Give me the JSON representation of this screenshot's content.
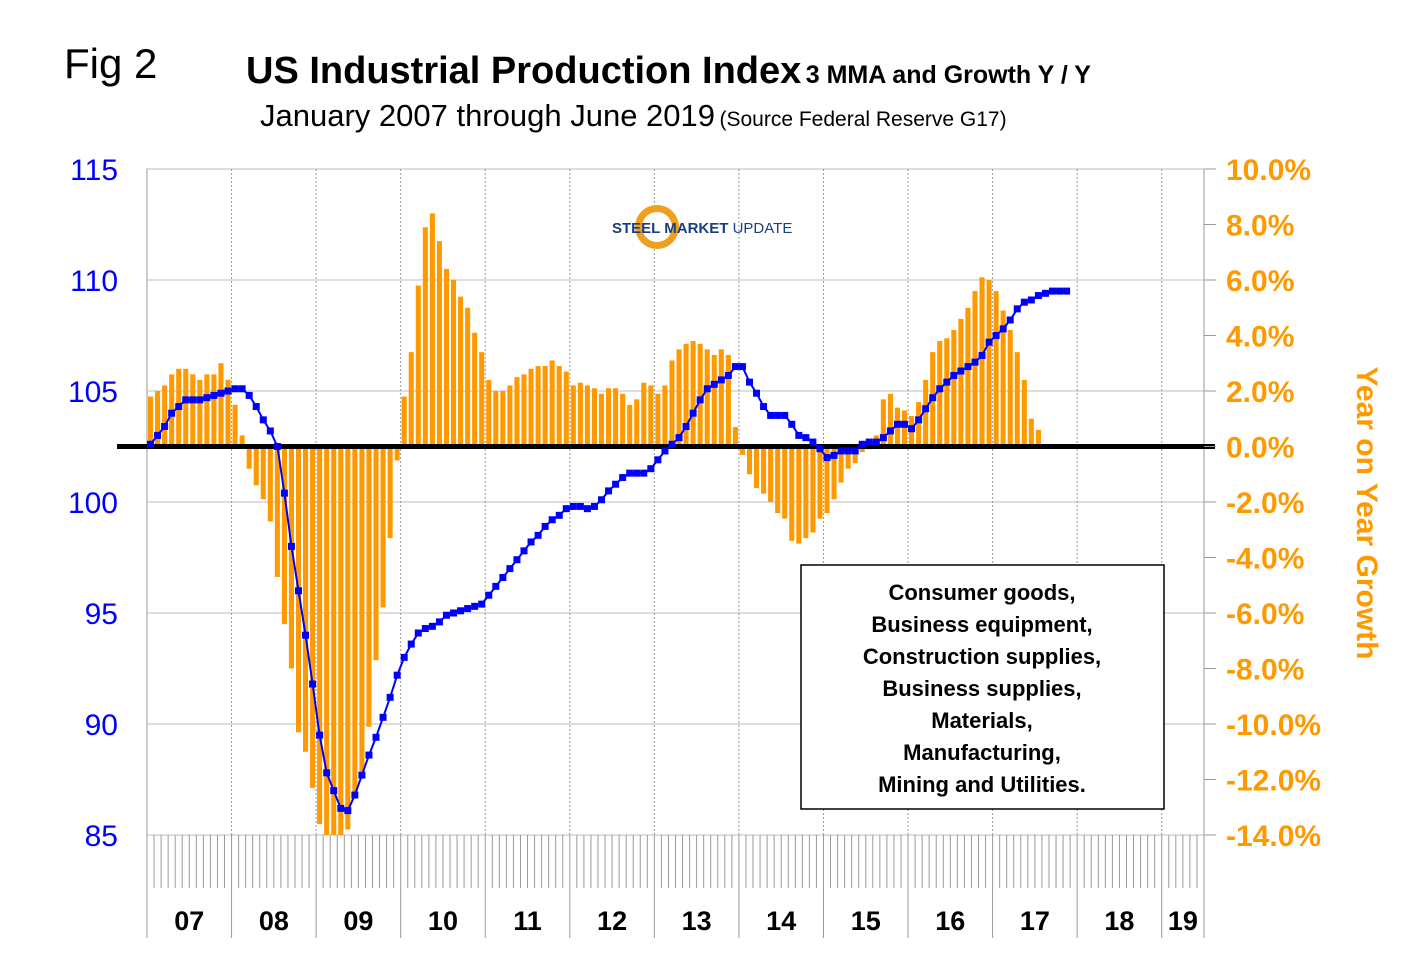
{
  "figure": {
    "fig_label": "Fig 2",
    "title": "US Industrial Production Index",
    "title_suffix": "3 MMA and Growth Y / Y",
    "subtitle": "January 2007 through June 2019",
    "source": "(Source Federal Reserve G17)",
    "logo_text": [
      "STEEL",
      "MARKET",
      "UPDATE"
    ],
    "legend_lines": [
      "Consumer goods,",
      "Business equipment,",
      "Construction supplies,",
      "Business supplies,",
      "Materials,",
      "Manufacturing,",
      "Mining and Utilities."
    ]
  },
  "chart_data": {
    "type": "bar",
    "x_start": "2007-01",
    "x_end": "2019-06",
    "x_tick_labels": [
      "07",
      "08",
      "09",
      "10",
      "11",
      "12",
      "13",
      "14",
      "15",
      "16",
      "17",
      "18",
      "19"
    ],
    "left_axis": {
      "label": "",
      "ticks": [
        115,
        110,
        105,
        100,
        95,
        90,
        85
      ],
      "ylim": [
        85,
        115
      ],
      "color": "#0000ff"
    },
    "right_axis": {
      "label": "Year on Year Growth",
      "ticks": [
        "10.0%",
        "8.0%",
        "6.0%",
        "4.0%",
        "2.0%",
        "0.0%",
        "-2.0%",
        "-4.0%",
        "-6.0%",
        "-8.0%",
        "-10.0%",
        "-12.0%",
        "-14.0%"
      ],
      "ylim": [
        -14,
        10
      ],
      "color": "#ff9900"
    },
    "grid": {
      "vertical_at_years": true,
      "horizontal": true
    },
    "zero_line_value_pct": 0.0,
    "series": [
      {
        "type": "bar",
        "axis": "right",
        "color": "#ff9900",
        "unit": "%",
        "values": [
          1.8,
          2.0,
          2.2,
          2.6,
          2.8,
          2.8,
          2.6,
          2.4,
          2.6,
          2.6,
          3.0,
          2.4,
          1.5,
          0.4,
          -0.8,
          -1.4,
          -1.9,
          -2.7,
          -4.7,
          -6.4,
          -8.0,
          -10.3,
          -11.0,
          -12.3,
          -13.6,
          -14.0,
          -14.0,
          -14.0,
          -13.8,
          -12.6,
          -11.7,
          -10.1,
          -7.7,
          -5.8,
          -3.3,
          -0.5,
          1.8,
          3.4,
          5.8,
          7.9,
          8.4,
          7.4,
          6.4,
          6.0,
          5.4,
          5.0,
          4.1,
          3.4,
          2.4,
          2.0,
          2.0,
          2.2,
          2.5,
          2.6,
          2.8,
          2.9,
          2.9,
          3.1,
          2.9,
          2.7,
          2.2,
          2.3,
          2.2,
          2.1,
          1.9,
          2.1,
          2.1,
          1.9,
          1.5,
          1.7,
          2.3,
          2.2,
          1.9,
          2.2,
          3.1,
          3.5,
          3.7,
          3.8,
          3.7,
          3.5,
          3.3,
          3.5,
          3.3,
          0.7,
          -0.3,
          -1.0,
          -1.5,
          -1.7,
          -2.0,
          -2.4,
          -2.6,
          -3.4,
          -3.5,
          -3.3,
          -3.1,
          -2.6,
          -2.4,
          -1.9,
          -1.3,
          -0.8,
          -0.6,
          -0.2,
          -0.1,
          0.4,
          1.7,
          1.9,
          1.4,
          1.3,
          1.1,
          1.6,
          2.4,
          3.4,
          3.8,
          3.9,
          4.2,
          4.6,
          5.0,
          5.6,
          6.1,
          6.0,
          5.6,
          4.9,
          4.2,
          3.4,
          2.4,
          1.0,
          0.6
        ]
      },
      {
        "type": "line",
        "axis": "left",
        "color": "#0000ff",
        "values": [
          102.6,
          103.0,
          103.4,
          104.0,
          104.3,
          104.6,
          104.6,
          104.6,
          104.7,
          104.8,
          104.9,
          105.0,
          105.1,
          105.1,
          104.8,
          104.3,
          103.7,
          103.2,
          102.5,
          100.4,
          98.0,
          96.0,
          94.0,
          91.8,
          89.5,
          87.8,
          87.0,
          86.2,
          86.1,
          86.8,
          87.7,
          88.6,
          89.4,
          90.3,
          91.2,
          92.2,
          93.0,
          93.6,
          94.1,
          94.3,
          94.4,
          94.6,
          94.9,
          95.0,
          95.1,
          95.2,
          95.3,
          95.4,
          95.8,
          96.2,
          96.6,
          97.0,
          97.4,
          97.8,
          98.2,
          98.5,
          98.9,
          99.2,
          99.4,
          99.7,
          99.8,
          99.8,
          99.7,
          99.8,
          100.1,
          100.5,
          100.8,
          101.1,
          101.3,
          101.3,
          101.3,
          101.5,
          101.9,
          102.3,
          102.6,
          102.9,
          103.4,
          104.0,
          104.6,
          105.1,
          105.3,
          105.5,
          105.7,
          106.1,
          106.1,
          105.4,
          104.9,
          104.3,
          103.9,
          103.9,
          103.9,
          103.5,
          103.0,
          102.9,
          102.7,
          102.4,
          102.0,
          102.1,
          102.3,
          102.3,
          102.3,
          102.6,
          102.7,
          102.7,
          102.9,
          103.2,
          103.5,
          103.5,
          103.3,
          103.7,
          104.2,
          104.7,
          105.1,
          105.4,
          105.7,
          105.9,
          106.1,
          106.3,
          106.6,
          107.2,
          107.5,
          107.8,
          108.2,
          108.7,
          109.0,
          109.1,
          109.3,
          109.4,
          109.5,
          109.5,
          109.5
        ]
      }
    ]
  }
}
